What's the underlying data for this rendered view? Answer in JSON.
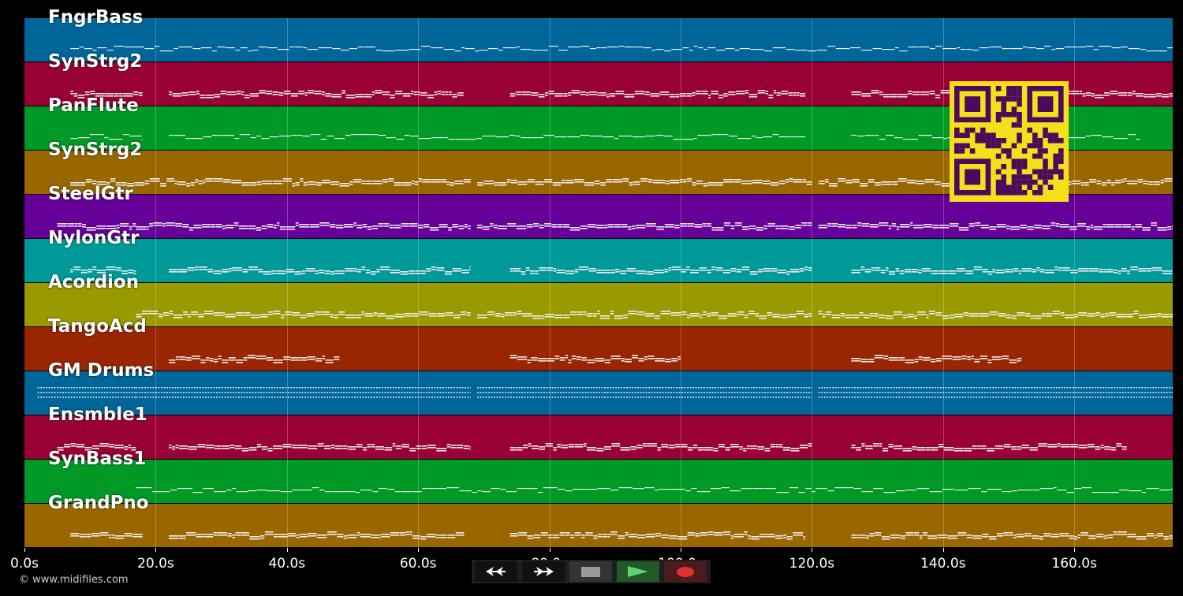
{
  "tracks": [
    {
      "name": "FngrBass",
      "color": "#006699",
      "sections": [
        [
          7,
          175
        ]
      ],
      "style": "line"
    },
    {
      "name": "SynStrg2",
      "color": "#990033",
      "sections": [
        [
          7,
          18
        ],
        [
          22,
          67
        ],
        [
          74,
          119
        ],
        [
          126,
          175
        ]
      ],
      "style": "chord"
    },
    {
      "name": "PanFlute",
      "color": "#009926",
      "sections": [
        [
          7,
          18
        ],
        [
          22,
          119
        ],
        [
          126,
          170
        ]
      ],
      "style": "line"
    },
    {
      "name": "SynStrg2",
      "color": "#996600",
      "sections": [
        [
          7,
          17
        ],
        [
          17,
          68
        ],
        [
          69,
          120
        ],
        [
          121,
          175
        ]
      ],
      "style": "chord"
    },
    {
      "name": "SteelGtr",
      "color": "#660099",
      "sections": [
        [
          5,
          17
        ],
        [
          17,
          68
        ],
        [
          69,
          120
        ],
        [
          121,
          175
        ]
      ],
      "style": "dense"
    },
    {
      "name": "NylonGtr",
      "color": "#009999",
      "sections": [
        [
          7,
          17
        ],
        [
          22,
          68
        ],
        [
          74,
          120
        ],
        [
          126,
          175
        ]
      ],
      "style": "chord"
    },
    {
      "name": "Acordion",
      "color": "#999900",
      "sections": [
        [
          17,
          68
        ],
        [
          69,
          120
        ],
        [
          121,
          175
        ]
      ],
      "style": "chord"
    },
    {
      "name": "TangoAcd",
      "color": "#992600",
      "sections": [
        [
          22,
          48
        ],
        [
          74,
          100
        ],
        [
          126,
          152
        ]
      ],
      "style": "chord"
    },
    {
      "name": "GM Drums",
      "color": "#006699",
      "sections": [
        [
          2,
          17
        ],
        [
          17,
          68
        ],
        [
          69,
          120
        ],
        [
          121,
          175
        ]
      ],
      "style": "drums"
    },
    {
      "name": "Ensmble1",
      "color": "#990033",
      "sections": [
        [
          5,
          17
        ],
        [
          22,
          68
        ],
        [
          74,
          120
        ],
        [
          126,
          168
        ]
      ],
      "style": "chord"
    },
    {
      "name": "SynBass1",
      "color": "#009926",
      "sections": [
        [
          17,
          175
        ]
      ],
      "style": "line"
    },
    {
      "name": "GrandPno",
      "color": "#996600",
      "sections": [
        [
          7,
          18
        ],
        [
          22,
          67
        ],
        [
          74,
          119
        ],
        [
          126,
          175
        ]
      ],
      "style": "chord"
    }
  ],
  "axis": {
    "ticks": [
      "0.0s",
      "20.0s",
      "40.0s",
      "60.0s",
      "80.0s",
      "100.0s",
      "120.0s",
      "140.0s",
      "160.0s"
    ],
    "tick_values": [
      0,
      20,
      40,
      60,
      80,
      100,
      120,
      140,
      160
    ],
    "max_seconds": 175
  },
  "controls": {
    "rewind": "rewind-icon",
    "fast_forward": "fast-forward-icon",
    "stop": "stop-icon",
    "play": "play-icon",
    "record": "record-icon"
  },
  "footer": {
    "copyright": "© www.midifiles.com"
  },
  "colors": {
    "qr_fg": "#4b0a5c",
    "qr_bg": "#f3df1c"
  }
}
